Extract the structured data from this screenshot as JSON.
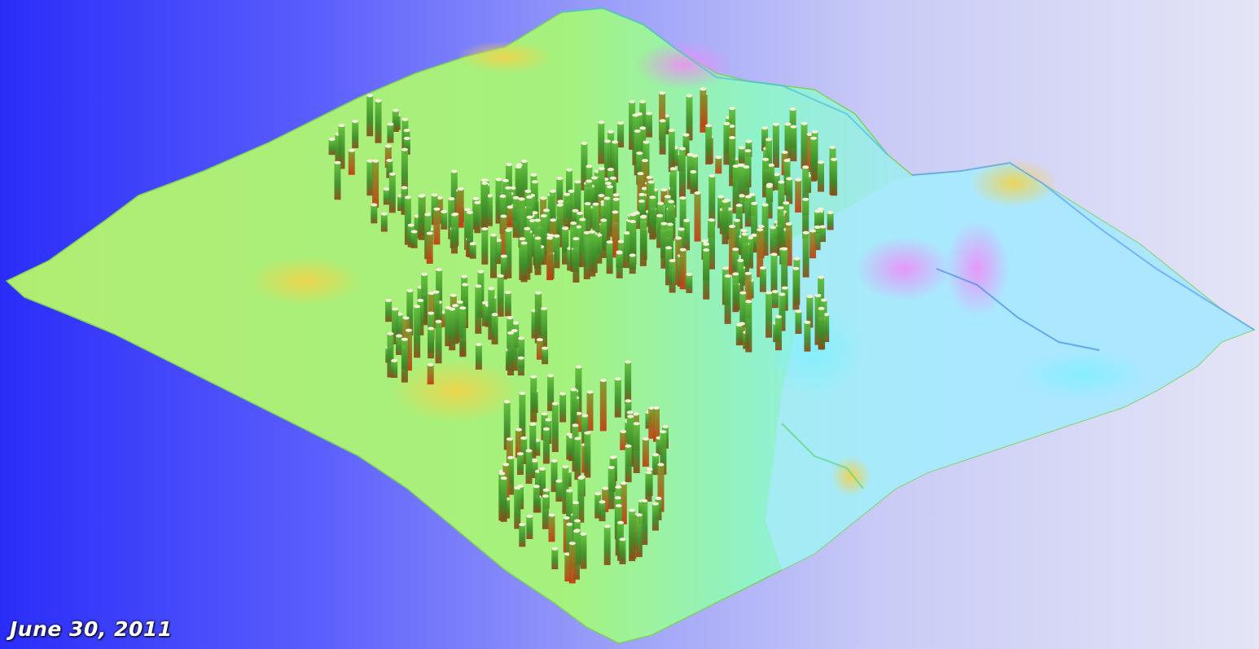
{
  "caption": {
    "date": "June 30, 2011"
  },
  "scene": {
    "description_icon": "terrain-3d-visualization",
    "colors": {
      "background_left": "#2a2df8",
      "background_right": "#e4e5f6",
      "terrain_green": "#a8f56a",
      "terrain_cyan": "#8ff0f0",
      "terrain_magenta": "#ee8cf8",
      "terrain_yellow": "#f0e060",
      "pillar_green": "#3f9a2c",
      "pillar_red": "#c04010"
    }
  }
}
